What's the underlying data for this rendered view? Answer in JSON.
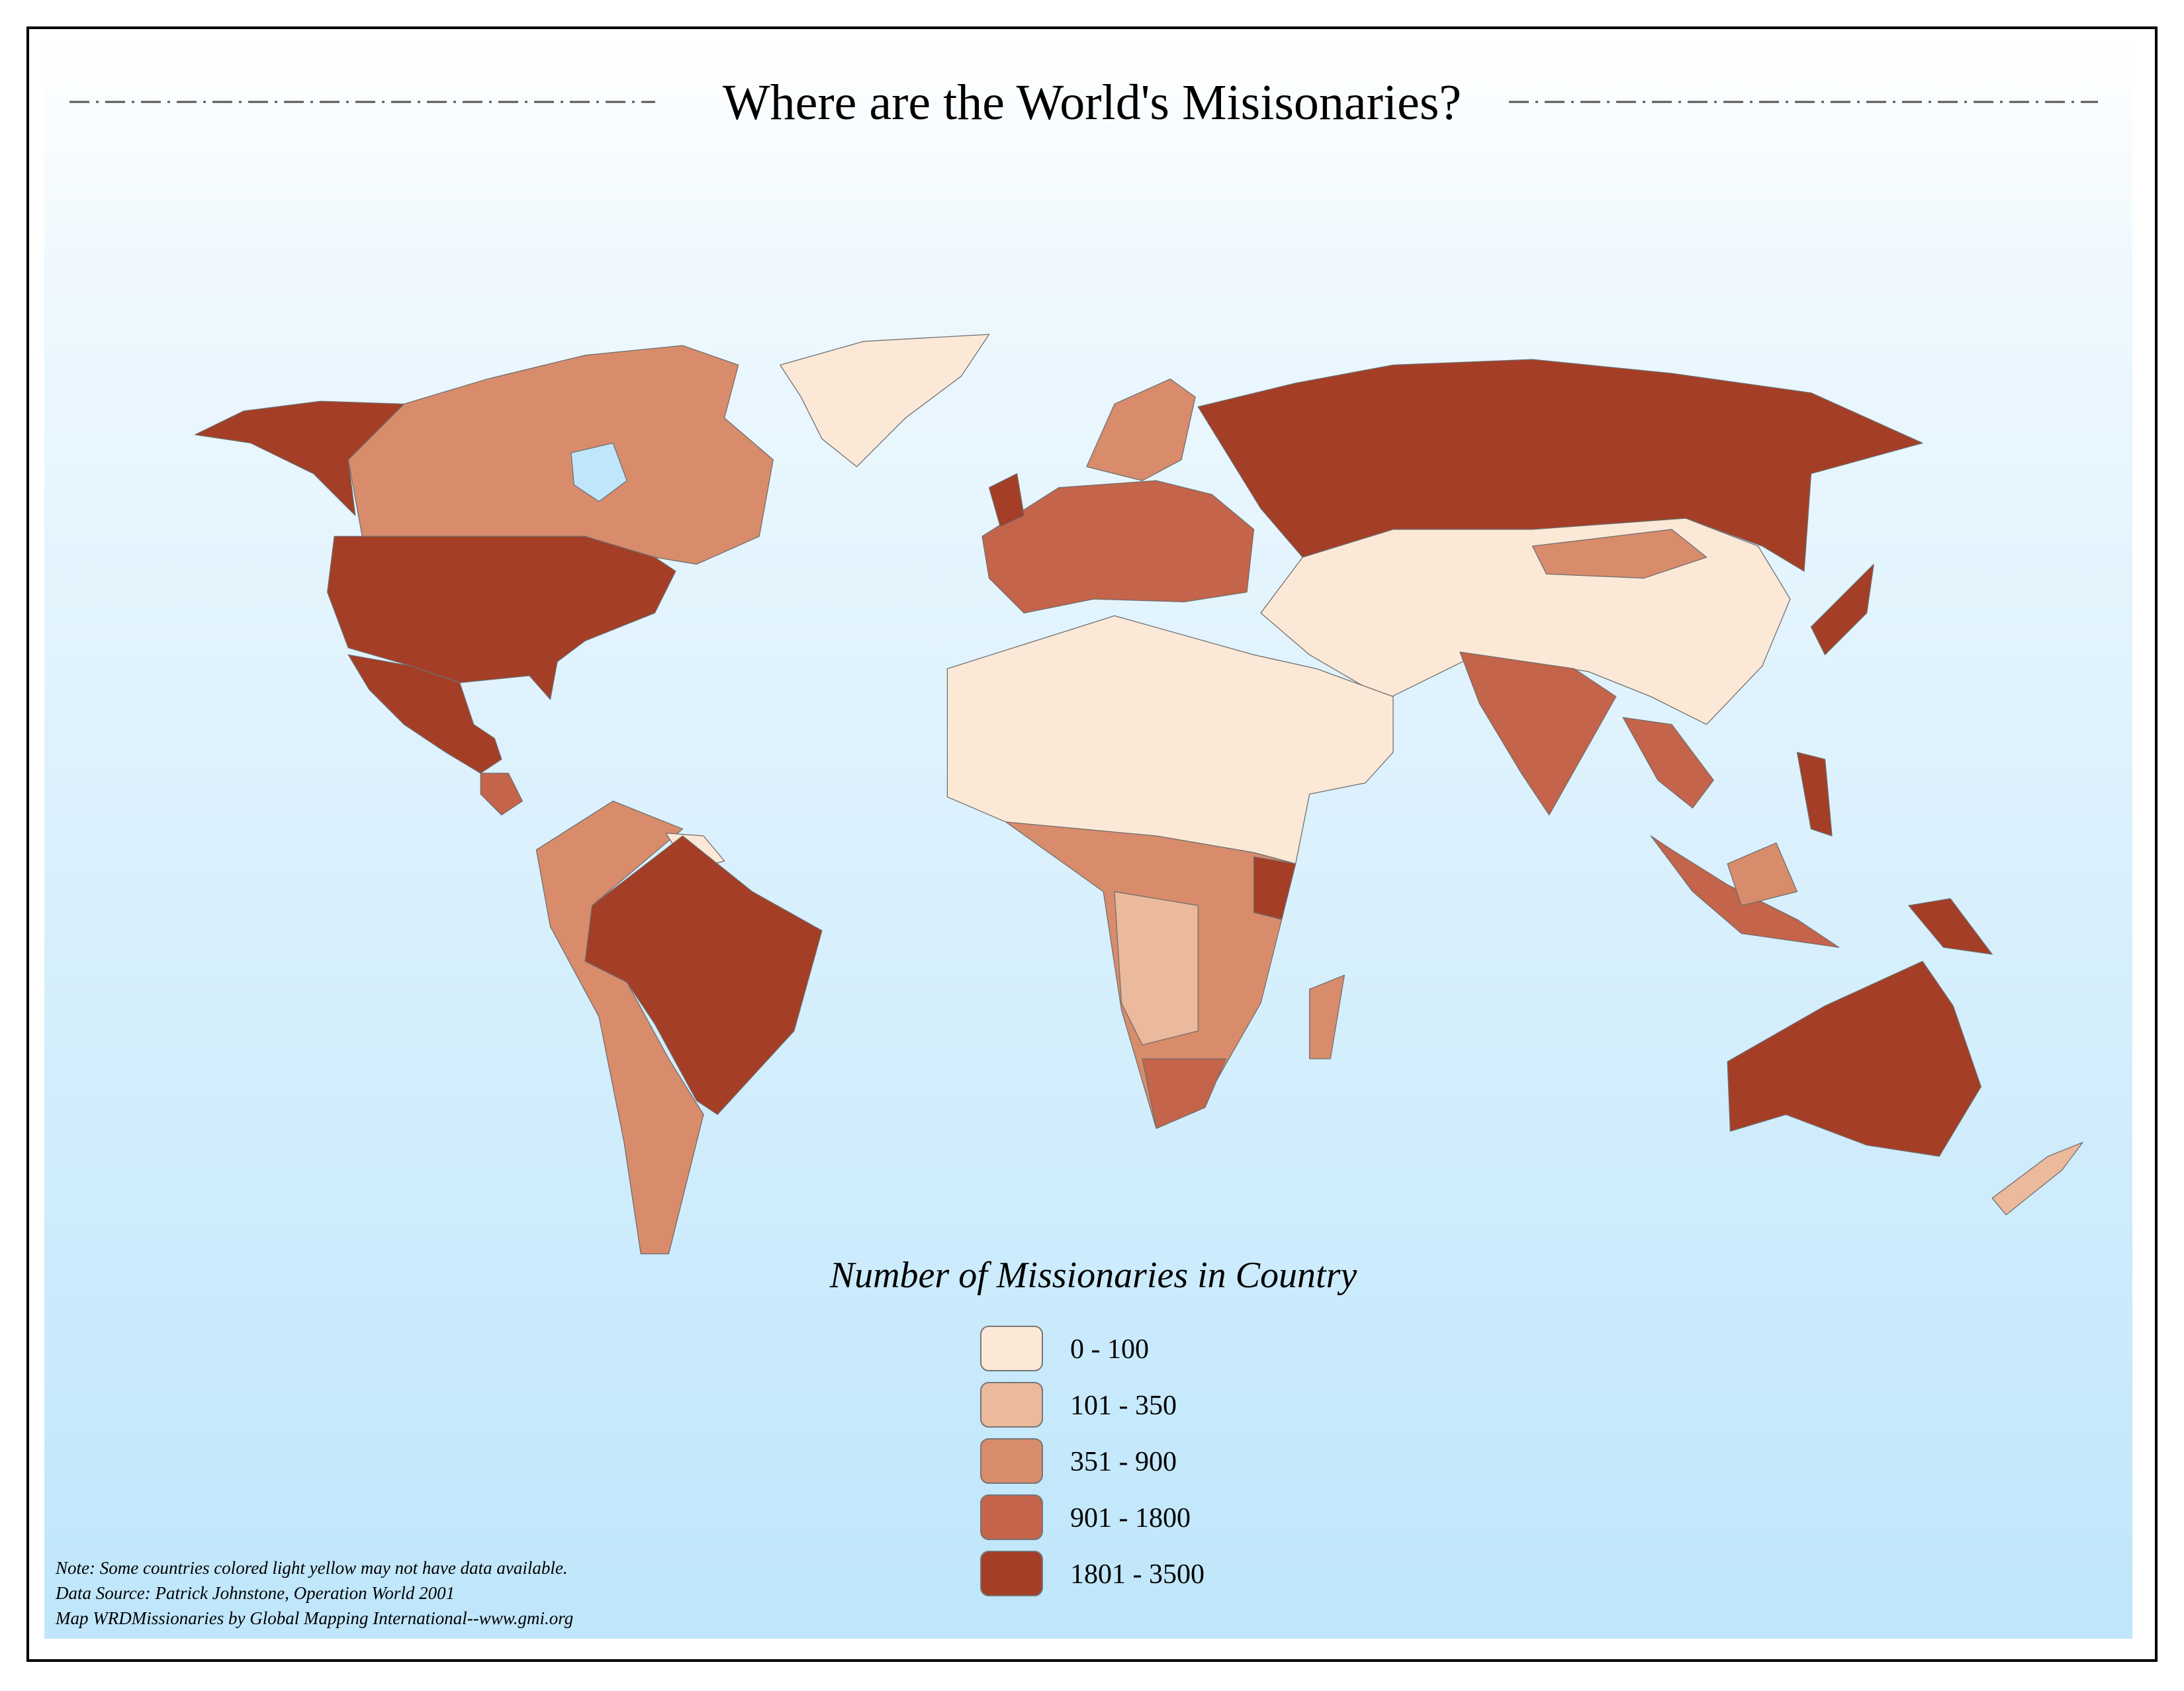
{
  "title": "Where are the World's Misisonaries?",
  "legend": {
    "title": "Number of Missionaries in Country",
    "items": [
      {
        "label": "0 - 100",
        "color": "#fbe8d6"
      },
      {
        "label": "101 - 350",
        "color": "#ebb99b"
      },
      {
        "label": "351 - 900",
        "color": "#d88c6c"
      },
      {
        "label": "901 - 1800",
        "color": "#c4644a"
      },
      {
        "label": "1801 - 3500",
        "color": "#a43e27"
      }
    ]
  },
  "notes": [
    "Note: Some countries colored  light yellow may not have data available.",
    "Data Source:  Patrick Johnstone, Operation World 2001",
    "Map WRDMissionaries by Global Mapping International--www.gmi.org"
  ]
}
